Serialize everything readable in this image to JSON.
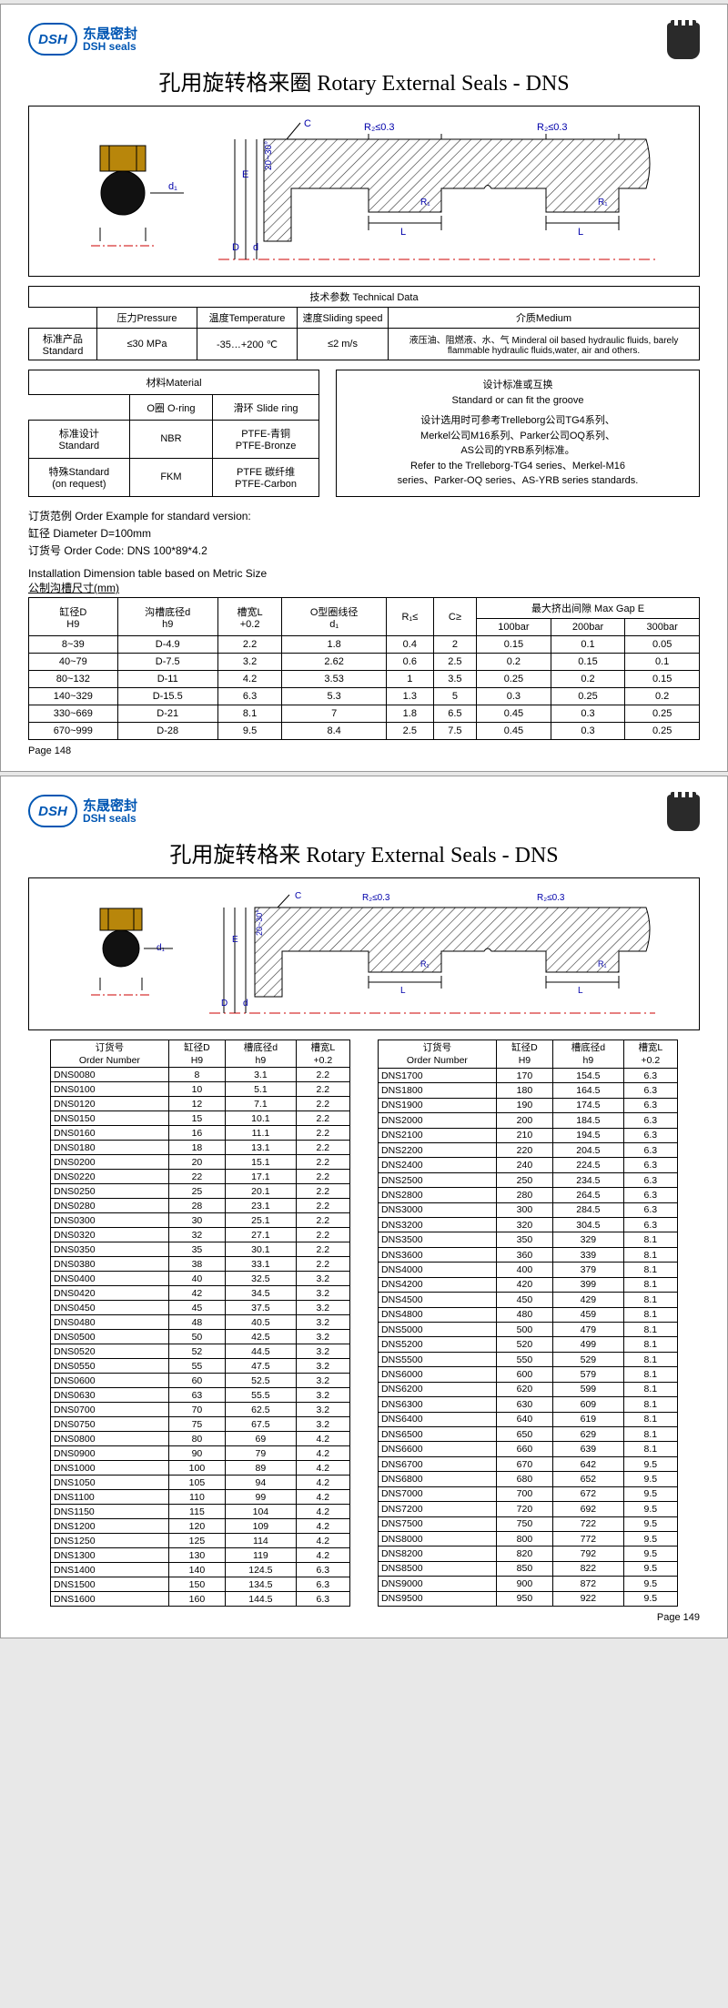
{
  "logo": {
    "mark": "DSH",
    "cn": "东晟密封",
    "en": "DSH seals"
  },
  "page1": {
    "title": "孔用旋转格来圈 Rotary External Seals - DNS",
    "diagram": {
      "r2": "R₂≤0.3",
      "r1": "R₁",
      "L": "L",
      "d1": "d₁",
      "C": "C",
      "D": "D",
      "E": "E",
      "d": "d",
      "angle": "20~30°"
    },
    "tech": {
      "caption": "技术参数 Technical Data",
      "headers": {
        "pressure": "压力Pressure",
        "temp": "温度Temperature",
        "speed": "速度Sliding speed",
        "medium": "介质Medium"
      },
      "rowlabel": "标准产品\nStandard",
      "pressure": "≤30 MPa",
      "temp": "-35…+200 ℃",
      "speed": "≤2 m/s",
      "medium": "液压油、阻燃液、水、气 Minderal oil based hydraulic fluids, barely flammable hydraulic fluids,water, air and others."
    },
    "material": {
      "caption": "材料Material",
      "h_oring": "O圈 O-ring",
      "h_slide": "滑环 Slide ring",
      "r1_label": "标准设计\nStandard",
      "r1_oring": "NBR",
      "r1_slide": "PTFE-青铜\nPTFE-Bronze",
      "r2_label": "特殊Standard\n(on request)",
      "r2_oring": "FKM",
      "r2_slide": "PTFE 碳纤维\nPTFE-Carbon"
    },
    "stdbox": {
      "l1": "设计标准或互换",
      "l2": "Standard or can fit the groove",
      "l3": "设计选用时可参考Trelleborg公司TG4系列、",
      "l4": "Merkel公司M16系列、Parker公司OQ系列、",
      "l5": "AS公司的YRB系列标准。",
      "l6": "Refer to the Trelleborg-TG4 series、Merkel-M16",
      "l7": "series、Parker-OQ series、AS-YRB series standards."
    },
    "order": {
      "l1": "订货范例  Order Example for standard version:",
      "l2": "缸径 Diameter D=100mm",
      "l3": "订货号 Order Code:  DNS 100*89*4.2"
    },
    "inst": {
      "l1": "Installation Dimension table based on Metric Size",
      "l2": "公制沟槽尺寸(mm)"
    },
    "dim": {
      "h": [
        "缸径D\nH9",
        "沟槽底径d\nh9",
        "槽宽L\n+0.2",
        "O型圈线径\nd₁",
        "R₁≤",
        "C≥",
        "最大挤出间隙 Max Gap E"
      ],
      "subh": [
        "100bar",
        "200bar",
        "300bar"
      ],
      "rows": [
        [
          "8~39",
          "D-4.9",
          "2.2",
          "1.8",
          "0.4",
          "2",
          "0.15",
          "0.1",
          "0.05"
        ],
        [
          "40~79",
          "D-7.5",
          "3.2",
          "2.62",
          "0.6",
          "2.5",
          "0.2",
          "0.15",
          "0.1"
        ],
        [
          "80~132",
          "D-11",
          "4.2",
          "3.53",
          "1",
          "3.5",
          "0.25",
          "0.2",
          "0.15"
        ],
        [
          "140~329",
          "D-15.5",
          "6.3",
          "5.3",
          "1.3",
          "5",
          "0.3",
          "0.25",
          "0.2"
        ],
        [
          "330~669",
          "D-21",
          "8.1",
          "7",
          "1.8",
          "6.5",
          "0.45",
          "0.3",
          "0.25"
        ],
        [
          "670~999",
          "D-28",
          "9.5",
          "8.4",
          "2.5",
          "7.5",
          "0.45",
          "0.3",
          "0.25"
        ]
      ]
    },
    "pagenum": "Page  148"
  },
  "page2": {
    "title": "孔用旋转格来 Rotary External Seals - DNS",
    "headers": [
      "订货号\nOrder Number",
      "缸径D\nH9",
      "槽底径d\nh9",
      "槽宽L\n+0.2"
    ],
    "left": [
      [
        "DNS0080",
        "8",
        "3.1",
        "2.2"
      ],
      [
        "DNS0100",
        "10",
        "5.1",
        "2.2"
      ],
      [
        "DNS0120",
        "12",
        "7.1",
        "2.2"
      ],
      [
        "DNS0150",
        "15",
        "10.1",
        "2.2"
      ],
      [
        "DNS0160",
        "16",
        "11.1",
        "2.2"
      ],
      [
        "DNS0180",
        "18",
        "13.1",
        "2.2"
      ],
      [
        "DNS0200",
        "20",
        "15.1",
        "2.2"
      ],
      [
        "DNS0220",
        "22",
        "17.1",
        "2.2"
      ],
      [
        "DNS0250",
        "25",
        "20.1",
        "2.2"
      ],
      [
        "DNS0280",
        "28",
        "23.1",
        "2.2"
      ],
      [
        "DNS0300",
        "30",
        "25.1",
        "2.2"
      ],
      [
        "DNS0320",
        "32",
        "27.1",
        "2.2"
      ],
      [
        "DNS0350",
        "35",
        "30.1",
        "2.2"
      ],
      [
        "DNS0380",
        "38",
        "33.1",
        "2.2"
      ],
      [
        "DNS0400",
        "40",
        "32.5",
        "3.2"
      ],
      [
        "DNS0420",
        "42",
        "34.5",
        "3.2"
      ],
      [
        "DNS0450",
        "45",
        "37.5",
        "3.2"
      ],
      [
        "DNS0480",
        "48",
        "40.5",
        "3.2"
      ],
      [
        "DNS0500",
        "50",
        "42.5",
        "3.2"
      ],
      [
        "DNS0520",
        "52",
        "44.5",
        "3.2"
      ],
      [
        "DNS0550",
        "55",
        "47.5",
        "3.2"
      ],
      [
        "DNS0600",
        "60",
        "52.5",
        "3.2"
      ],
      [
        "DNS0630",
        "63",
        "55.5",
        "3.2"
      ],
      [
        "DNS0700",
        "70",
        "62.5",
        "3.2"
      ],
      [
        "DNS0750",
        "75",
        "67.5",
        "3.2"
      ],
      [
        "DNS0800",
        "80",
        "69",
        "4.2"
      ],
      [
        "DNS0900",
        "90",
        "79",
        "4.2"
      ],
      [
        "DNS1000",
        "100",
        "89",
        "4.2"
      ],
      [
        "DNS1050",
        "105",
        "94",
        "4.2"
      ],
      [
        "DNS1100",
        "110",
        "99",
        "4.2"
      ],
      [
        "DNS1150",
        "115",
        "104",
        "4.2"
      ],
      [
        "DNS1200",
        "120",
        "109",
        "4.2"
      ],
      [
        "DNS1250",
        "125",
        "114",
        "4.2"
      ],
      [
        "DNS1300",
        "130",
        "119",
        "4.2"
      ],
      [
        "DNS1400",
        "140",
        "124.5",
        "6.3"
      ],
      [
        "DNS1500",
        "150",
        "134.5",
        "6.3"
      ],
      [
        "DNS1600",
        "160",
        "144.5",
        "6.3"
      ]
    ],
    "right": [
      [
        "DNS1700",
        "170",
        "154.5",
        "6.3"
      ],
      [
        "DNS1800",
        "180",
        "164.5",
        "6.3"
      ],
      [
        "DNS1900",
        "190",
        "174.5",
        "6.3"
      ],
      [
        "DNS2000",
        "200",
        "184.5",
        "6.3"
      ],
      [
        "DNS2100",
        "210",
        "194.5",
        "6.3"
      ],
      [
        "DNS2200",
        "220",
        "204.5",
        "6.3"
      ],
      [
        "DNS2400",
        "240",
        "224.5",
        "6.3"
      ],
      [
        "DNS2500",
        "250",
        "234.5",
        "6.3"
      ],
      [
        "DNS2800",
        "280",
        "264.5",
        "6.3"
      ],
      [
        "DNS3000",
        "300",
        "284.5",
        "6.3"
      ],
      [
        "DNS3200",
        "320",
        "304.5",
        "6.3"
      ],
      [
        "DNS3500",
        "350",
        "329",
        "8.1"
      ],
      [
        "DNS3600",
        "360",
        "339",
        "8.1"
      ],
      [
        "DNS4000",
        "400",
        "379",
        "8.1"
      ],
      [
        "DNS4200",
        "420",
        "399",
        "8.1"
      ],
      [
        "DNS4500",
        "450",
        "429",
        "8.1"
      ],
      [
        "DNS4800",
        "480",
        "459",
        "8.1"
      ],
      [
        "DNS5000",
        "500",
        "479",
        "8.1"
      ],
      [
        "DNS5200",
        "520",
        "499",
        "8.1"
      ],
      [
        "DNS5500",
        "550",
        "529",
        "8.1"
      ],
      [
        "DNS6000",
        "600",
        "579",
        "8.1"
      ],
      [
        "DNS6200",
        "620",
        "599",
        "8.1"
      ],
      [
        "DNS6300",
        "630",
        "609",
        "8.1"
      ],
      [
        "DNS6400",
        "640",
        "619",
        "8.1"
      ],
      [
        "DNS6500",
        "650",
        "629",
        "8.1"
      ],
      [
        "DNS6600",
        "660",
        "639",
        "8.1"
      ],
      [
        "DNS6700",
        "670",
        "642",
        "9.5"
      ],
      [
        "DNS6800",
        "680",
        "652",
        "9.5"
      ],
      [
        "DNS7000",
        "700",
        "672",
        "9.5"
      ],
      [
        "DNS7200",
        "720",
        "692",
        "9.5"
      ],
      [
        "DNS7500",
        "750",
        "722",
        "9.5"
      ],
      [
        "DNS8000",
        "800",
        "772",
        "9.5"
      ],
      [
        "DNS8200",
        "820",
        "792",
        "9.5"
      ],
      [
        "DNS8500",
        "850",
        "822",
        "9.5"
      ],
      [
        "DNS9000",
        "900",
        "872",
        "9.5"
      ],
      [
        "DNS9500",
        "950",
        "922",
        "9.5"
      ]
    ],
    "pagenum": "Page  149"
  }
}
